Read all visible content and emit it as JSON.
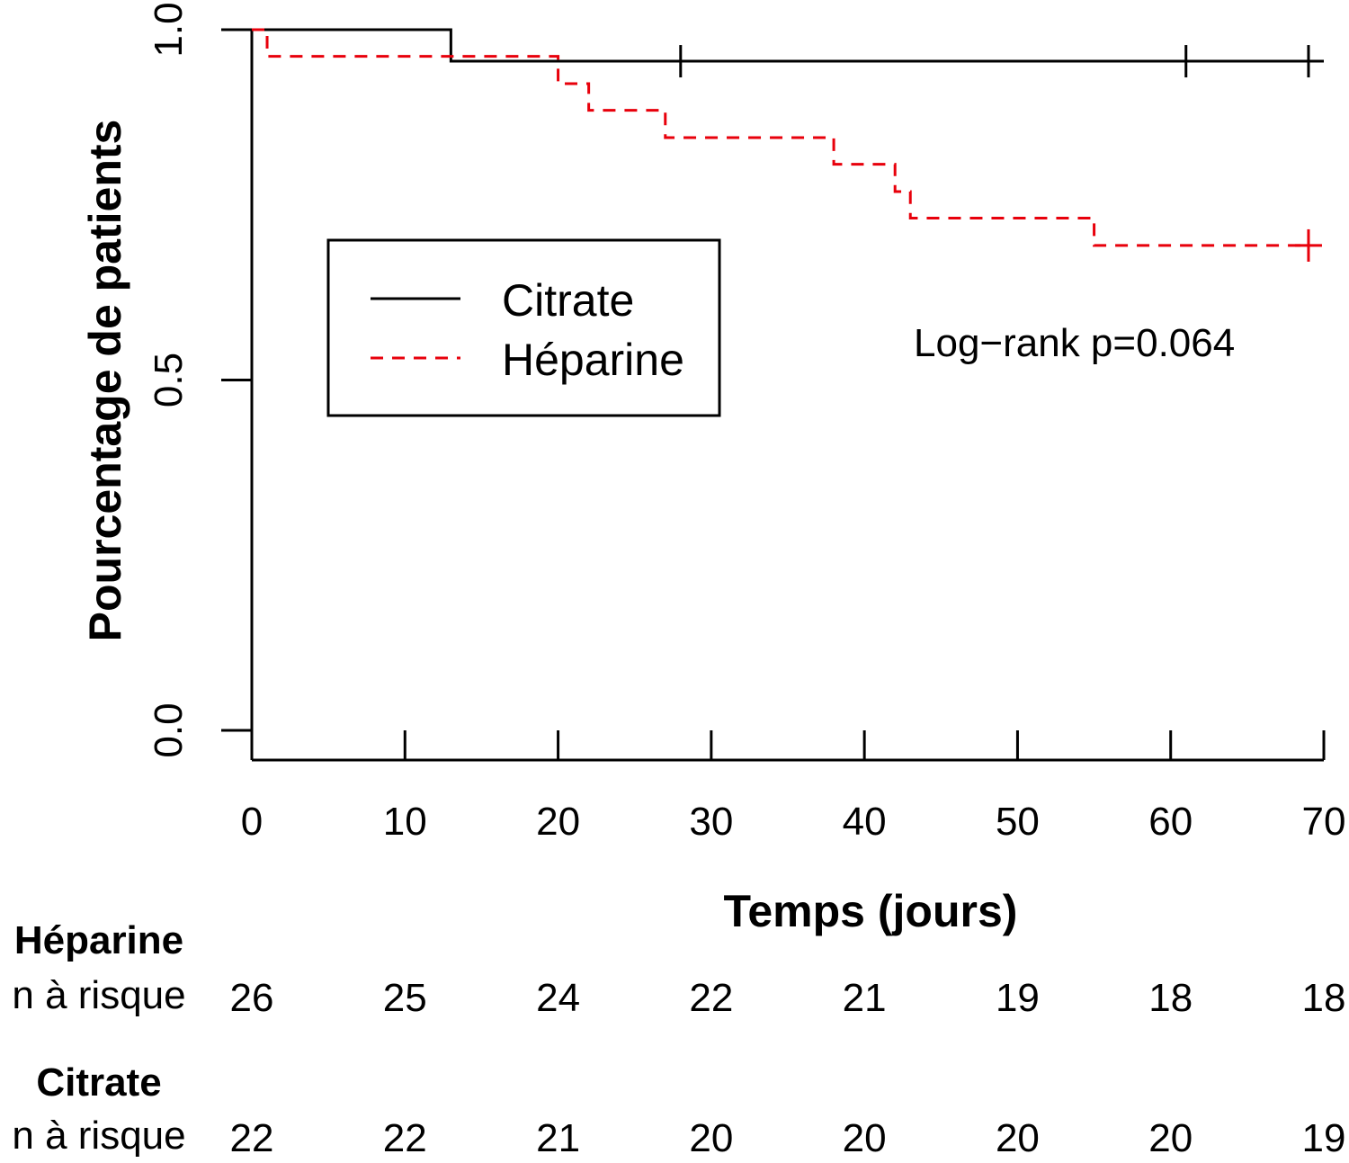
{
  "chart_data": {
    "type": "line",
    "subtype": "kaplan-meier step curves",
    "title": "",
    "xlabel": "Temps (jours)",
    "ylabel": "Pourcentage de patients",
    "xlim": [
      0,
      70
    ],
    "ylim": [
      0,
      1
    ],
    "x_ticks": [
      0,
      10,
      20,
      30,
      40,
      50,
      60,
      70
    ],
    "x_tick_labels": [
      "0",
      "10",
      "20",
      "30",
      "40",
      "50",
      "60",
      "70"
    ],
    "y_ticks": [
      0,
      0.5,
      1
    ],
    "y_tick_labels": [
      "0.0",
      "0.5",
      "1.0"
    ],
    "grid": false,
    "legend": {
      "position": "upper-left-center",
      "entries": [
        "Citrate",
        "Héparine"
      ]
    },
    "annotation": "Log−rank p=0.064",
    "series": [
      {
        "name": "Citrate",
        "color": "#000000",
        "line_style": "solid",
        "steps": [
          [
            0,
            1.0
          ],
          [
            13,
            0.955
          ]
        ],
        "end_x": 70,
        "censor_marks": [
          [
            28,
            0.955
          ],
          [
            61,
            0.955
          ],
          [
            69,
            0.955
          ]
        ]
      },
      {
        "name": "Héparine",
        "color": "#e8000b",
        "line_style": "dashed",
        "steps": [
          [
            0,
            1.0
          ],
          [
            1,
            0.962
          ],
          [
            20,
            0.923
          ],
          [
            22,
            0.885
          ],
          [
            27,
            0.846
          ],
          [
            38,
            0.808
          ],
          [
            42,
            0.769
          ],
          [
            43,
            0.731
          ],
          [
            55,
            0.692
          ]
        ],
        "end_x": 69,
        "censor_marks": [
          [
            69,
            0.692
          ]
        ]
      }
    ],
    "risk_table": {
      "times": [
        0,
        10,
        20,
        30,
        40,
        50,
        60,
        70
      ],
      "row_label": "n à risque",
      "groups": [
        {
          "name": "Héparine",
          "counts": [
            "26",
            "25",
            "24",
            "22",
            "21",
            "19",
            "18",
            "18"
          ]
        },
        {
          "name": "Citrate",
          "counts": [
            "22",
            "22",
            "21",
            "20",
            "20",
            "20",
            "20",
            "19"
          ]
        }
      ]
    }
  }
}
